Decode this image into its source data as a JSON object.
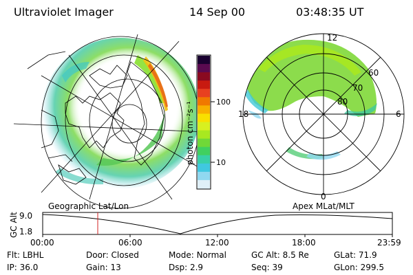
{
  "header": {
    "instrument": "Ultraviolet Imager",
    "date": "14 Sep 00",
    "time": "03:48:35 UT"
  },
  "colorbar": {
    "label": "photon cm⁻²s⁻¹",
    "ticks": [
      "100",
      "10"
    ],
    "colors": [
      "#1a0030",
      "#5a0a50",
      "#8a0a20",
      "#c81a10",
      "#e84020",
      "#f07800",
      "#f8b000",
      "#f8e000",
      "#d8f020",
      "#a8e820",
      "#70d838",
      "#40d060",
      "#38d0a8",
      "#40c8e0",
      "#90d8f0",
      "#e0f0f8"
    ]
  },
  "left_panel": {
    "label": "Geographic Lat/Lon"
  },
  "right_panel": {
    "label": "Apex MLat/MLT",
    "mlt_labels": {
      "top": "12",
      "left": "18",
      "right": "6",
      "bottom": "0"
    },
    "lat_labels": [
      "60",
      "70",
      "80"
    ]
  },
  "altitude_plot": {
    "ylabel": "GC Alt",
    "yticks": [
      "9.0",
      "1.8"
    ],
    "xticks": [
      "00:00",
      "06:00",
      "12:00",
      "18:00",
      "23:59"
    ],
    "marker_color": "#d02020"
  },
  "info": {
    "row1": [
      {
        "label": "Flt:",
        "value": "LBHL"
      },
      {
        "label": "Door:",
        "value": "Closed"
      },
      {
        "label": "Mode:",
        "value": "Normal"
      },
      {
        "label": "GC Alt:",
        "value": "8.5 Re"
      },
      {
        "label": "GLat:",
        "value": "71.9"
      }
    ],
    "row2": [
      {
        "label": "IP:",
        "value": "36.0"
      },
      {
        "label": "Gain:",
        "value": "13"
      },
      {
        "label": "Dsp:",
        "value": "2.9"
      },
      {
        "label": "Seq:",
        "value": "39"
      },
      {
        "label": "GLon:",
        "value": "299.5"
      }
    ]
  }
}
